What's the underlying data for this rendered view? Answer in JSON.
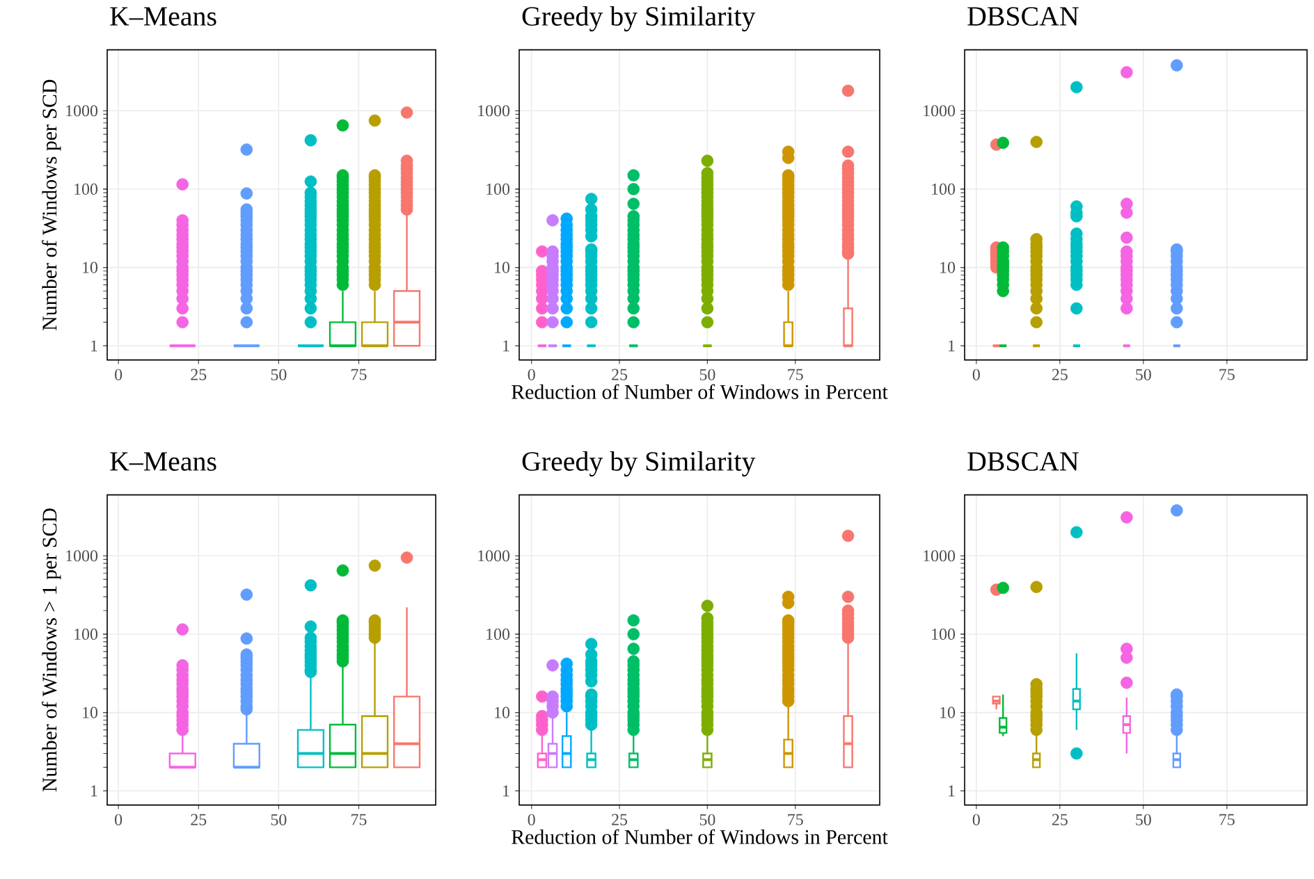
{
  "chart_data": [
    {
      "type": "box",
      "title": "K–Means",
      "ylabel": "Number of Windows per SCD",
      "x": [
        20,
        40,
        60,
        70,
        80,
        90
      ],
      "colors": [
        "#F564E3",
        "#619CFF",
        "#00BFC4",
        "#00BA38",
        "#B79F00",
        "#F8766D"
      ],
      "xlim": [
        -3.5,
        99
      ],
      "xticks": [
        0,
        25,
        50,
        75
      ],
      "ylim": [
        0.66,
        6000
      ],
      "yticks": [
        1,
        10,
        100,
        1000
      ],
      "log": "y",
      "grid": true,
      "boxes": [
        {
          "low": 1,
          "q1": 1,
          "median": 1,
          "q3": 1,
          "high": 1,
          "outliers": [
            2,
            3,
            4,
            5,
            6,
            7,
            8,
            9,
            10,
            12,
            14,
            16,
            18,
            20,
            23,
            26,
            30,
            35,
            40,
            115
          ]
        },
        {
          "low": 1,
          "q1": 1,
          "median": 1,
          "q3": 1,
          "high": 1,
          "outliers": [
            2,
            3,
            4,
            5,
            6,
            7,
            8,
            9,
            10,
            12,
            14,
            16,
            18,
            20,
            23,
            26,
            30,
            35,
            40,
            45,
            50,
            55,
            88,
            320
          ]
        },
        {
          "low": 1,
          "q1": 1,
          "median": 1,
          "q3": 1,
          "high": 1,
          "outliers": [
            2,
            3,
            4,
            5,
            6,
            7,
            8,
            9,
            10,
            12,
            14,
            16,
            18,
            20,
            23,
            26,
            30,
            35,
            40,
            45,
            50,
            55,
            62,
            70,
            80,
            90,
            125,
            420
          ]
        },
        {
          "low": 1,
          "q1": 1,
          "median": 1,
          "q3": 2,
          "high": 5,
          "outliers": [
            6,
            7,
            8,
            9,
            10,
            12,
            14,
            16,
            18,
            20,
            23,
            26,
            30,
            35,
            40,
            45,
            50,
            55,
            62,
            70,
            80,
            90,
            100,
            112,
            125,
            140,
            150,
            650
          ]
        },
        {
          "low": 1,
          "q1": 1,
          "median": 1,
          "q3": 2,
          "high": 5,
          "outliers": [
            6,
            7,
            8,
            9,
            10,
            12,
            14,
            16,
            18,
            20,
            23,
            26,
            30,
            35,
            40,
            45,
            50,
            55,
            62,
            70,
            80,
            90,
            100,
            112,
            125,
            140,
            150,
            750
          ]
        },
        {
          "low": 1,
          "q1": 1,
          "median": 2,
          "q3": 5,
          "high": 50,
          "outliers": [
            55,
            62,
            70,
            80,
            90,
            100,
            112,
            125,
            140,
            160,
            180,
            200,
            230,
            950
          ]
        }
      ]
    },
    {
      "type": "box",
      "title": "Greedy by Similarity",
      "xlabel": "Reduction of Number of Windows in Percent",
      "x": [
        3,
        6,
        10,
        17,
        29,
        50,
        73,
        90
      ],
      "colors": [
        "#FF61CC",
        "#C77CFF",
        "#00A9FF",
        "#00BFC4",
        "#00BE67",
        "#7CAE00",
        "#CD9600",
        "#F8766D"
      ],
      "xlim": [
        -3.5,
        99
      ],
      "xticks": [
        0,
        25,
        50,
        75
      ],
      "ylim": [
        0.66,
        6000
      ],
      "yticks": [
        1,
        10,
        100,
        1000
      ],
      "log": "y",
      "grid": true,
      "boxes": [
        {
          "low": 1,
          "q1": 1,
          "median": 1,
          "q3": 1,
          "high": 1,
          "outliers": [
            2,
            3,
            4,
            5,
            6,
            7,
            8,
            9,
            16
          ]
        },
        {
          "low": 1,
          "q1": 1,
          "median": 1,
          "q3": 1,
          "high": 1,
          "outliers": [
            2,
            3,
            4,
            5,
            6,
            7,
            8,
            9,
            10,
            12,
            14,
            16,
            40
          ]
        },
        {
          "low": 1,
          "q1": 1,
          "median": 1,
          "q3": 1,
          "high": 1,
          "outliers": [
            2,
            3,
            4,
            5,
            6,
            7,
            8,
            9,
            10,
            12,
            14,
            16,
            18,
            20,
            23,
            26,
            30,
            35,
            42
          ]
        },
        {
          "low": 1,
          "q1": 1,
          "median": 1,
          "q3": 1,
          "high": 1,
          "outliers": [
            2,
            3,
            4,
            5,
            6,
            7,
            8,
            9,
            10,
            12,
            14,
            16,
            17,
            25,
            30,
            35,
            40,
            45,
            55,
            75
          ]
        },
        {
          "low": 1,
          "q1": 1,
          "median": 1,
          "q3": 1,
          "high": 1,
          "outliers": [
            2,
            3,
            4,
            5,
            6,
            7,
            8,
            9,
            10,
            12,
            14,
            16,
            18,
            20,
            23,
            26,
            30,
            35,
            40,
            45,
            65,
            100,
            150
          ]
        },
        {
          "low": 1,
          "q1": 1,
          "median": 1,
          "q3": 1,
          "high": 1,
          "outliers": [
            2,
            3,
            4,
            5,
            6,
            7,
            8,
            9,
            10,
            12,
            14,
            16,
            18,
            20,
            23,
            26,
            30,
            35,
            40,
            45,
            50,
            55,
            62,
            70,
            80,
            90,
            100,
            112,
            125,
            140,
            160,
            230
          ]
        },
        {
          "low": 1,
          "q1": 1,
          "median": 1,
          "q3": 2,
          "high": 5,
          "outliers": [
            6,
            7,
            8,
            9,
            10,
            12,
            14,
            16,
            18,
            20,
            23,
            26,
            30,
            35,
            40,
            45,
            50,
            55,
            62,
            70,
            80,
            90,
            100,
            112,
            125,
            140,
            150,
            250,
            300
          ]
        },
        {
          "low": 1,
          "q1": 1,
          "median": 1,
          "q3": 3,
          "high": 14,
          "outliers": [
            15,
            16,
            18,
            20,
            23,
            26,
            30,
            35,
            40,
            45,
            50,
            55,
            62,
            70,
            80,
            90,
            100,
            112,
            125,
            140,
            160,
            180,
            200,
            300,
            1800
          ]
        }
      ]
    },
    {
      "type": "box",
      "title": "DBSCAN",
      "x": [
        6,
        8,
        18,
        30,
        45,
        60
      ],
      "colors": [
        "#F8766D",
        "#00BA38",
        "#B79F00",
        "#00BFC4",
        "#F564E3",
        "#619CFF"
      ],
      "xlim": [
        -3.5,
        99
      ],
      "xticks": [
        0,
        25,
        50,
        75
      ],
      "ylim": [
        0.66,
        6000
      ],
      "yticks": [
        1,
        10,
        100,
        1000
      ],
      "log": "y",
      "grid": true,
      "boxes": [
        {
          "low": 1,
          "q1": 1,
          "median": 1,
          "q3": 1,
          "high": 1,
          "outliers": [
            10,
            11,
            12,
            13,
            14,
            15,
            16,
            17,
            18,
            370
          ]
        },
        {
          "low": 1,
          "q1": 1,
          "median": 1,
          "q3": 1,
          "high": 1,
          "outliers": [
            5,
            6,
            7,
            8,
            9,
            10,
            11,
            12,
            14,
            16,
            18,
            390
          ]
        },
        {
          "low": 1,
          "q1": 1,
          "median": 1,
          "q3": 1,
          "high": 1,
          "outliers": [
            2,
            3,
            4,
            5,
            6,
            7,
            8,
            9,
            10,
            12,
            14,
            16,
            18,
            20,
            23,
            400
          ]
        },
        {
          "low": 1,
          "q1": 1,
          "median": 1,
          "q3": 1,
          "high": 1,
          "outliers": [
            3,
            6,
            7,
            8,
            9,
            10,
            12,
            14,
            16,
            18,
            20,
            23,
            27,
            45,
            50,
            60,
            2000
          ]
        },
        {
          "low": 1,
          "q1": 1,
          "median": 1,
          "q3": 1,
          "high": 1,
          "outliers": [
            3,
            4,
            5,
            6,
            7,
            8,
            9,
            10,
            12,
            14,
            16,
            24,
            50,
            65,
            3100
          ]
        },
        {
          "low": 1,
          "q1": 1,
          "median": 1,
          "q3": 1,
          "high": 1,
          "outliers": [
            2,
            3,
            4,
            5,
            6,
            7,
            8,
            9,
            10,
            12,
            14,
            16,
            17,
            3800
          ]
        }
      ]
    },
    {
      "type": "box",
      "title": "K–Means",
      "ylabel": "Number of Windows > 1 per SCD",
      "x": [
        20,
        40,
        60,
        70,
        80,
        90
      ],
      "colors": [
        "#F564E3",
        "#619CFF",
        "#00BFC4",
        "#00BA38",
        "#B79F00",
        "#F8766D"
      ],
      "xlim": [
        -3.5,
        99
      ],
      "xticks": [
        0,
        25,
        50,
        75
      ],
      "ylim": [
        0.66,
        6000
      ],
      "yticks": [
        1,
        10,
        100,
        1000
      ],
      "log": "y",
      "grid": true,
      "boxes": [
        {
          "low": 2,
          "q1": 2,
          "median": 2,
          "q3": 3,
          "high": 5.5,
          "outliers": [
            6,
            7,
            8,
            9,
            10,
            12,
            14,
            16,
            18,
            20,
            23,
            26,
            30,
            35,
            40,
            115
          ]
        },
        {
          "low": 2,
          "q1": 2,
          "median": 2,
          "q3": 4,
          "high": 10,
          "outliers": [
            11,
            12,
            14,
            16,
            18,
            20,
            23,
            26,
            30,
            35,
            40,
            45,
            50,
            55,
            88,
            320
          ]
        },
        {
          "low": 2,
          "q1": 2,
          "median": 3,
          "q3": 6,
          "high": 30,
          "outliers": [
            33,
            35,
            40,
            45,
            50,
            55,
            62,
            70,
            80,
            90,
            125,
            420
          ]
        },
        {
          "low": 2,
          "q1": 2,
          "median": 3,
          "q3": 7,
          "high": 42,
          "outliers": [
            45,
            50,
            55,
            62,
            70,
            80,
            90,
            100,
            112,
            125,
            140,
            150,
            650
          ]
        },
        {
          "low": 2,
          "q1": 2,
          "median": 3,
          "q3": 9,
          "high": 85,
          "outliers": [
            90,
            100,
            112,
            125,
            140,
            150,
            750
          ]
        },
        {
          "low": 2,
          "q1": 2,
          "median": 4,
          "q3": 16,
          "high": 220,
          "outliers": [
            950
          ]
        }
      ]
    },
    {
      "type": "box",
      "title": "Greedy by Similarity",
      "xlabel": "Reduction of Number of Windows in Percent",
      "x": [
        3,
        6,
        10,
        17,
        29,
        50,
        73,
        90
      ],
      "colors": [
        "#FF61CC",
        "#C77CFF",
        "#00A9FF",
        "#00BFC4",
        "#00BE67",
        "#7CAE00",
        "#CD9600",
        "#F8766D"
      ],
      "xlim": [
        -3.5,
        99
      ],
      "xticks": [
        0,
        25,
        50,
        75
      ],
      "ylim": [
        0.66,
        6000
      ],
      "yticks": [
        1,
        10,
        100,
        1000
      ],
      "log": "y",
      "grid": true,
      "boxes": [
        {
          "low": 2,
          "q1": 2,
          "median": 2.5,
          "q3": 3,
          "high": 5.5,
          "outliers": [
            6,
            7,
            8,
            9,
            16
          ]
        },
        {
          "low": 2,
          "q1": 2,
          "median": 3,
          "q3": 4,
          "high": 9,
          "outliers": [
            10,
            12,
            14,
            16,
            40
          ]
        },
        {
          "low": 2,
          "q1": 2,
          "median": 3,
          "q3": 5,
          "high": 10,
          "outliers": [
            12,
            14,
            16,
            18,
            20,
            23,
            26,
            30,
            35,
            42
          ]
        },
        {
          "low": 2,
          "q1": 2,
          "median": 2.5,
          "q3": 3,
          "high": 6,
          "outliers": [
            7,
            8,
            9,
            10,
            12,
            14,
            16,
            17,
            25,
            30,
            35,
            40,
            45,
            55,
            75
          ]
        },
        {
          "low": 2,
          "q1": 2,
          "median": 2.5,
          "q3": 3,
          "high": 5.5,
          "outliers": [
            6,
            7,
            8,
            9,
            10,
            12,
            14,
            16,
            18,
            20,
            23,
            26,
            30,
            35,
            40,
            45,
            65,
            100,
            150
          ]
        },
        {
          "low": 2,
          "q1": 2,
          "median": 2.5,
          "q3": 3,
          "high": 5.5,
          "outliers": [
            6,
            7,
            8,
            9,
            10,
            12,
            14,
            16,
            18,
            20,
            23,
            26,
            30,
            35,
            40,
            45,
            50,
            55,
            62,
            70,
            80,
            90,
            100,
            112,
            125,
            140,
            160,
            230
          ]
        },
        {
          "low": 2,
          "q1": 2,
          "median": 3,
          "q3": 4.5,
          "high": 13,
          "outliers": [
            14,
            16,
            18,
            20,
            23,
            26,
            30,
            35,
            40,
            45,
            50,
            55,
            62,
            70,
            80,
            90,
            100,
            112,
            125,
            140,
            150,
            250,
            300
          ]
        },
        {
          "low": 2,
          "q1": 2,
          "median": 4,
          "q3": 9,
          "high": 85,
          "outliers": [
            90,
            100,
            112,
            125,
            140,
            160,
            180,
            200,
            300,
            1800
          ]
        }
      ]
    },
    {
      "type": "box",
      "title": "DBSCAN",
      "x": [
        6,
        8,
        18,
        30,
        45,
        60
      ],
      "colors": [
        "#F8766D",
        "#00BA38",
        "#B79F00",
        "#00BFC4",
        "#F564E3",
        "#619CFF"
      ],
      "xlim": [
        -3.5,
        99
      ],
      "xticks": [
        0,
        25,
        50,
        75
      ],
      "ylim": [
        0.66,
        6000
      ],
      "yticks": [
        1,
        10,
        100,
        1000
      ],
      "log": "y",
      "grid": true,
      "boxes": [
        {
          "low": 11,
          "q1": 13,
          "median": 14,
          "q3": 16,
          "high": 16,
          "outliers": [
            370
          ]
        },
        {
          "low": 5,
          "q1": 5.5,
          "median": 6.5,
          "q3": 8.5,
          "high": 17,
          "outliers": [
            390
          ]
        },
        {
          "low": 2,
          "q1": 2,
          "median": 2.5,
          "q3": 3,
          "high": 5.5,
          "outliers": [
            6,
            7,
            8,
            9,
            10,
            12,
            14,
            16,
            18,
            20,
            23,
            400
          ]
        },
        {
          "low": 6,
          "q1": 11,
          "median": 14,
          "q3": 20,
          "high": 57,
          "outliers": [
            3,
            2000
          ]
        },
        {
          "low": 3,
          "q1": 5.5,
          "median": 7,
          "q3": 9,
          "high": 15.5,
          "outliers": [
            24,
            50,
            65,
            3100
          ]
        },
        {
          "low": 2,
          "q1": 2,
          "median": 2.5,
          "q3": 3,
          "high": 5.5,
          "outliers": [
            6,
            7,
            8,
            9,
            10,
            12,
            14,
            16,
            17,
            3800
          ]
        }
      ]
    }
  ]
}
